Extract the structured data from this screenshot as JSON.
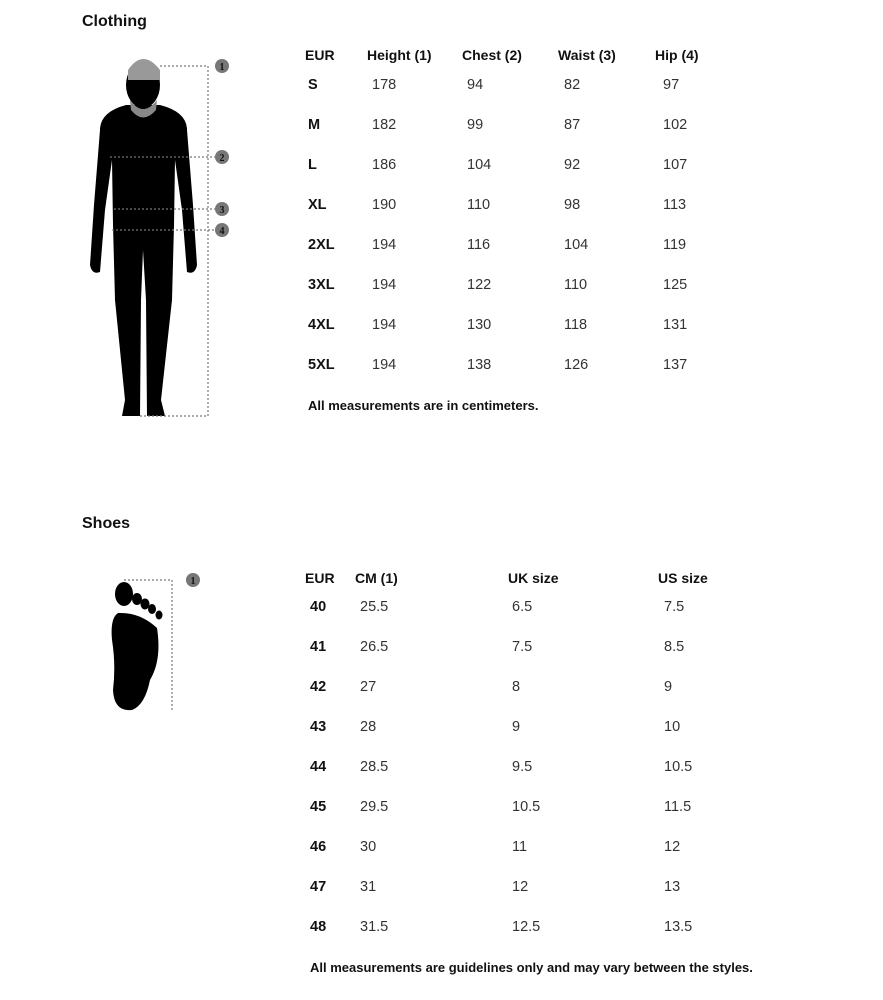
{
  "clothing": {
    "title": "Clothing",
    "headers": [
      "EUR",
      "Height (1)",
      "Chest (2)",
      "Waist (3)",
      "Hip (4)"
    ],
    "rows": [
      [
        "S",
        "178",
        "94",
        "82",
        "97"
      ],
      [
        "M",
        "182",
        "99",
        "87",
        "102"
      ],
      [
        "L",
        "186",
        "104",
        "92",
        "107"
      ],
      [
        "XL",
        "190",
        "110",
        "98",
        "113"
      ],
      [
        "2XL",
        "194",
        "116",
        "104",
        "119"
      ],
      [
        "3XL",
        "194",
        "122",
        "110",
        "125"
      ],
      [
        "4XL",
        "194",
        "130",
        "118",
        "131"
      ],
      [
        "5XL",
        "194",
        "138",
        "126",
        "137"
      ]
    ],
    "note": "All measurements are in centimeters.",
    "markers": [
      "1",
      "2",
      "3",
      "4"
    ]
  },
  "shoes": {
    "title": "Shoes",
    "headers": [
      "EUR",
      "CM (1)",
      "UK size",
      "US size"
    ],
    "rows": [
      [
        "40",
        "25.5",
        "6.5",
        "7.5"
      ],
      [
        "41",
        "26.5",
        "7.5",
        "8.5"
      ],
      [
        "42",
        "27",
        "8",
        "9"
      ],
      [
        "43",
        "28",
        "9",
        "10"
      ],
      [
        "44",
        "28.5",
        "9.5",
        "10.5"
      ],
      [
        "45",
        "29.5",
        "10.5",
        "11.5"
      ],
      [
        "46",
        "30",
        "11",
        "12"
      ],
      [
        "47",
        "31",
        "12",
        "13"
      ],
      [
        "48",
        "31.5",
        "12.5",
        "13.5"
      ]
    ],
    "note": "All measurements are guidelines only and may vary between the styles.",
    "markers": [
      "1"
    ]
  }
}
